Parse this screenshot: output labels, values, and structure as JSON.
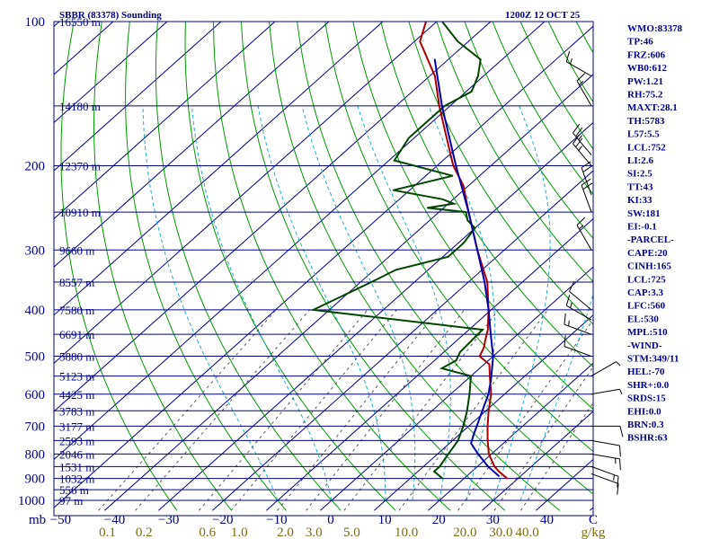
{
  "header": {
    "station": "SBBR (83378) Sounding",
    "time": "1200Z 12 OCT 25"
  },
  "chart_data": {
    "type": "line",
    "title": "SBBR (83378) Sounding",
    "plot_type": "Skew-T log-P",
    "pressure_axis": {
      "unit": "mb",
      "range": [
        1000,
        100
      ],
      "scale": "log",
      "ticks": [
        "100",
        "200",
        "300",
        "400",
        "500",
        "600",
        "700",
        "800",
        "900",
        "1000"
      ]
    },
    "height_labels": [
      {
        "p": 100,
        "label": "16550 m"
      },
      {
        "p": 150,
        "label": "14180 m"
      },
      {
        "p": 200,
        "label": "12370 m"
      },
      {
        "p": 250,
        "label": "10910 m"
      },
      {
        "p": 300,
        "label": "9660 m"
      },
      {
        "p": 350,
        "label": "8557 m"
      },
      {
        "p": 400,
        "label": "7580 m"
      },
      {
        "p": 450,
        "label": "6691 m"
      },
      {
        "p": 500,
        "label": "5880 m"
      },
      {
        "p": 550,
        "label": "5123 m"
      },
      {
        "p": 600,
        "label": "4425 m"
      },
      {
        "p": 650,
        "label": "3783 m"
      },
      {
        "p": 700,
        "label": "3177 m"
      },
      {
        "p": 750,
        "label": "2593 m"
      },
      {
        "p": 800,
        "label": "2046 m"
      },
      {
        "p": 850,
        "label": "1531 m"
      },
      {
        "p": 900,
        "label": "1032 m"
      },
      {
        "p": 950,
        "label": "556 m"
      },
      {
        "p": 1000,
        "label": "97 m"
      }
    ],
    "temperature_axis": {
      "unit": "C",
      "ticks": [
        "−50",
        "−40",
        "−30",
        "−20",
        "−10",
        "0",
        "10",
        "20",
        "30",
        "40"
      ],
      "tick_values": [
        -50,
        -40,
        -30,
        -20,
        -10,
        0,
        10,
        20,
        30,
        40
      ],
      "unit_label": "C"
    },
    "mixing_ratio_axis": {
      "unit": "g/kg",
      "ticks": [
        "0.1",
        "0.2",
        "0.6",
        "1.0",
        "2.0",
        "3.0",
        "5.0",
        "10.0",
        "20.0",
        "30.0",
        "40.0"
      ],
      "values": [
        0.1,
        0.2,
        0.6,
        1.0,
        2.0,
        3.0,
        5.0,
        10.0,
        20.0,
        30.0,
        40.0
      ],
      "unit_label": "g/kg"
    },
    "series": [
      {
        "name": "Temperature",
        "color": "#aa0000",
        "points": [
          {
            "p": 900,
            "t": 28.0
          },
          {
            "p": 870,
            "t": 25.0
          },
          {
            "p": 850,
            "t": 23.2
          },
          {
            "p": 800,
            "t": 19.5
          },
          {
            "p": 750,
            "t": 16.5
          },
          {
            "p": 700,
            "t": 13.5
          },
          {
            "p": 650,
            "t": 10.5
          },
          {
            "p": 600,
            "t": 7.5
          },
          {
            "p": 550,
            "t": 3.5
          },
          {
            "p": 520,
            "t": 1.0
          },
          {
            "p": 500,
            "t": -2.5
          },
          {
            "p": 480,
            "t": -3.5
          },
          {
            "p": 460,
            "t": -5.0
          },
          {
            "p": 440,
            "t": -6.5
          },
          {
            "p": 400,
            "t": -10.5
          },
          {
            "p": 350,
            "t": -16.5
          },
          {
            "p": 300,
            "t": -25.0
          },
          {
            "p": 250,
            "t": -34.5
          },
          {
            "p": 220,
            "t": -41.0
          },
          {
            "p": 200,
            "t": -47.0
          },
          {
            "p": 170,
            "t": -55.5
          },
          {
            "p": 150,
            "t": -62.0
          },
          {
            "p": 130,
            "t": -69.0
          },
          {
            "p": 110,
            "t": -79.0
          },
          {
            "p": 100,
            "t": -82.0
          }
        ]
      },
      {
        "name": "Dewpoint",
        "color": "#004400",
        "points": [
          {
            "p": 900,
            "t": 16.0
          },
          {
            "p": 870,
            "t": 13.0
          },
          {
            "p": 850,
            "t": 13.0
          },
          {
            "p": 800,
            "t": 12.0
          },
          {
            "p": 750,
            "t": 11.0
          },
          {
            "p": 700,
            "t": 9.0
          },
          {
            "p": 650,
            "t": 6.5
          },
          {
            "p": 600,
            "t": 3.5
          },
          {
            "p": 550,
            "t": 0.0
          },
          {
            "p": 530,
            "t": -7.0
          },
          {
            "p": 510,
            "t": -6.0
          },
          {
            "p": 490,
            "t": -7.0
          },
          {
            "p": 440,
            "t": -7.5
          },
          {
            "p": 400,
            "t": -43.0
          },
          {
            "p": 350,
            "t": -38.0
          },
          {
            "p": 330,
            "t": -36.0
          },
          {
            "p": 310,
            "t": -29.0
          },
          {
            "p": 290,
            "t": -29.0
          },
          {
            "p": 270,
            "t": -30.0
          },
          {
            "p": 260,
            "t": -33.0
          },
          {
            "p": 250,
            "t": -35.0
          },
          {
            "p": 245,
            "t": -43.0
          },
          {
            "p": 240,
            "t": -39.0
          },
          {
            "p": 235,
            "t": -42.0
          },
          {
            "p": 225,
            "t": -53.0
          },
          {
            "p": 210,
            "t": -45.0
          },
          {
            "p": 195,
            "t": -59.0
          },
          {
            "p": 175,
            "t": -61.0
          },
          {
            "p": 150,
            "t": -61.0
          },
          {
            "p": 140,
            "t": -59.0
          },
          {
            "p": 130,
            "t": -61.0
          },
          {
            "p": 120,
            "t": -64.0
          },
          {
            "p": 110,
            "t": -72.0
          },
          {
            "p": 100,
            "t": -79.0
          }
        ]
      },
      {
        "name": "Parcel",
        "color": "#0000aa",
        "points": [
          {
            "p": 890,
            "t": 26.0
          },
          {
            "p": 850,
            "t": 22.0
          },
          {
            "p": 800,
            "t": 17.5
          },
          {
            "p": 760,
            "t": 14.0
          },
          {
            "p": 725,
            "t": 12.5
          },
          {
            "p": 700,
            "t": 11.5
          },
          {
            "p": 600,
            "t": 7.0
          },
          {
            "p": 560,
            "t": 4.5
          },
          {
            "p": 500,
            "t": 0.0
          },
          {
            "p": 450,
            "t": -5.0
          },
          {
            "p": 400,
            "t": -10.5
          },
          {
            "p": 350,
            "t": -17.0
          },
          {
            "p": 300,
            "t": -25.0
          },
          {
            "p": 250,
            "t": -34.5
          },
          {
            "p": 200,
            "t": -46.5
          },
          {
            "p": 150,
            "t": -61.5
          },
          {
            "p": 120,
            "t": -72.5
          }
        ]
      }
    ],
    "wind_barbs": [
      {
        "p": 880,
        "dir": 110,
        "kt": 10
      },
      {
        "p": 850,
        "dir": 110,
        "kt": 15
      },
      {
        "p": 800,
        "dir": 100,
        "kt": 15
      },
      {
        "p": 750,
        "dir": 100,
        "kt": 10
      },
      {
        "p": 700,
        "dir": 90,
        "kt": 10
      },
      {
        "p": 600,
        "dir": 80,
        "kt": 5
      },
      {
        "p": 550,
        "dir": 60,
        "kt": 5
      },
      {
        "p": 500,
        "dir": 290,
        "kt": 10
      },
      {
        "p": 450,
        "dir": 290,
        "kt": 15
      },
      {
        "p": 420,
        "dir": 300,
        "kt": 15
      },
      {
        "p": 400,
        "dir": 310,
        "kt": 10
      },
      {
        "p": 300,
        "dir": 330,
        "kt": 15
      },
      {
        "p": 250,
        "dir": 340,
        "kt": 20
      },
      {
        "p": 230,
        "dir": 340,
        "kt": 20
      },
      {
        "p": 200,
        "dir": 320,
        "kt": 25
      },
      {
        "p": 190,
        "dir": 320,
        "kt": 25
      },
      {
        "p": 150,
        "dir": 330,
        "kt": 15
      },
      {
        "p": 130,
        "dir": 300,
        "kt": 15
      }
    ],
    "line_colors": {
      "isobar": "#000088",
      "isotherm": "#000088",
      "dry_adiabat": "#009900",
      "moist_adiabat": "#22aacc",
      "mixing_ratio": "#555555",
      "border": "#000088"
    }
  },
  "indices": [
    "WMO:83378",
    "TP:46",
    "FRZ:606",
    "WB0:612",
    "PW:1.21",
    "RH:75.2",
    "MAXT:28.1",
    "TH:5783",
    "L57:5.5",
    "LCL:752",
    "LI:2.6",
    "SI:2.5",
    "TT:43",
    "KI:33",
    "SW:181",
    "EI:-0.1",
    "-PARCEL-",
    "CAPE:20",
    "CINH:165",
    "LCL:725",
    "CAP:3.3",
    "LFC:560",
    "EL:530",
    "MPL:510",
    "-WIND-",
    "STM:349/11",
    "HEL:-70",
    "SHR+:0.0",
    "SRDS:15",
    "EHI:0.0",
    "BRN:0.3",
    "BSHR:63"
  ]
}
